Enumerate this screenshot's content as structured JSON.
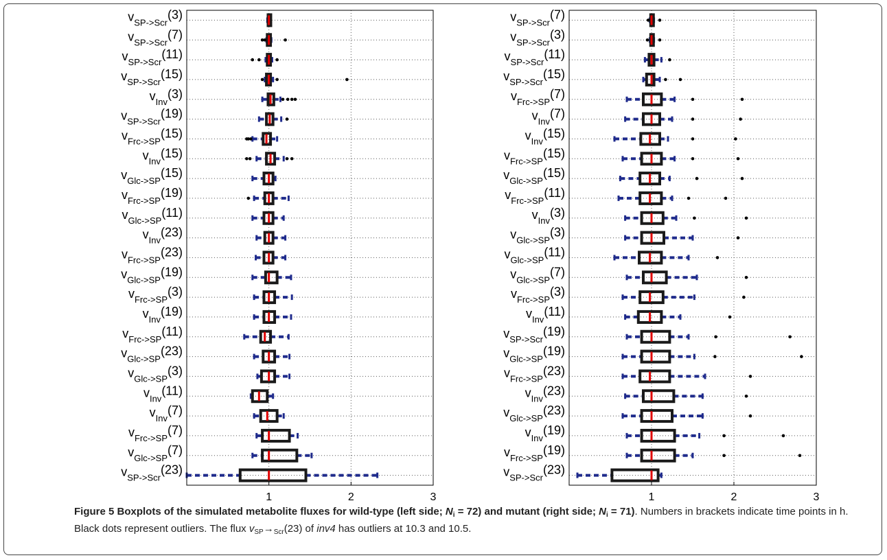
{
  "chart_data": [
    {
      "type": "box",
      "panel": "wild-type",
      "xlim": [
        0,
        3
      ],
      "xticks": [
        1,
        2,
        3
      ],
      "grid": true,
      "categories": [
        {
          "label": "SP->Scr",
          "t": "(3)",
          "q1": 0.99,
          "med": 1.0,
          "q3": 1.01,
          "wlo": 0.98,
          "whi": 1.02,
          "out": []
        },
        {
          "label": "SP->Scr",
          "t": "(7)",
          "q1": 0.98,
          "med": 1.0,
          "q3": 1.02,
          "wlo": 0.97,
          "whi": 1.03,
          "out": [
            0.92,
            0.95,
            1.2
          ]
        },
        {
          "label": "SP->Scr",
          "t": "(11)",
          "q1": 0.98,
          "med": 1.0,
          "q3": 1.02,
          "wlo": 0.96,
          "whi": 1.04,
          "out": [
            0.8,
            0.88,
            1.1
          ]
        },
        {
          "label": "SP->Scr",
          "t": "(15)",
          "q1": 0.97,
          "med": 1.0,
          "q3": 1.02,
          "wlo": 0.95,
          "whi": 1.05,
          "out": [
            0.92,
            1.1,
            1.95
          ]
        },
        {
          "label": "Inv",
          "t": "(3)",
          "q1": 0.99,
          "med": 1.02,
          "q3": 1.06,
          "wlo": 0.92,
          "whi": 1.14,
          "out": [
            1.17,
            1.23,
            1.28,
            1.32
          ]
        },
        {
          "label": "SP->Scr",
          "t": "(19)",
          "q1": 0.97,
          "med": 1.01,
          "q3": 1.05,
          "wlo": 0.88,
          "whi": 1.15,
          "out": [
            1.22
          ]
        },
        {
          "label": "Frc->SP",
          "t": "(15)",
          "q1": 0.93,
          "med": 0.97,
          "q3": 1.02,
          "wlo": 0.8,
          "whi": 1.1,
          "out": [
            0.73,
            0.75,
            0.78
          ]
        },
        {
          "label": "Inv",
          "t": "(15)",
          "q1": 0.97,
          "med": 1.02,
          "q3": 1.07,
          "wlo": 0.85,
          "whi": 1.18,
          "out": [
            0.73,
            0.77,
            1.22,
            1.28
          ]
        },
        {
          "label": "Glc->SP",
          "t": "(15)",
          "q1": 0.94,
          "med": 1.0,
          "q3": 1.05,
          "wlo": 0.8,
          "whi": 1.08,
          "out": []
        },
        {
          "label": "Frc->SP",
          "t": "(19)",
          "q1": 0.95,
          "med": 1.0,
          "q3": 1.05,
          "wlo": 0.82,
          "whi": 1.24,
          "out": [
            0.75
          ]
        },
        {
          "label": "Glc->SP",
          "t": "(11)",
          "q1": 0.94,
          "med": 1.0,
          "q3": 1.05,
          "wlo": 0.8,
          "whi": 1.18,
          "out": []
        },
        {
          "label": "Inv",
          "t": "(23)",
          "q1": 0.95,
          "med": 1.0,
          "q3": 1.05,
          "wlo": 0.85,
          "whi": 1.2,
          "out": []
        },
        {
          "label": "Frc->SP",
          "t": "(23)",
          "q1": 0.94,
          "med": 1.0,
          "q3": 1.05,
          "wlo": 0.84,
          "whi": 1.2,
          "out": []
        },
        {
          "label": "Glc->SP",
          "t": "(19)",
          "q1": 0.96,
          "med": 1.0,
          "q3": 1.1,
          "wlo": 0.8,
          "whi": 1.27,
          "out": []
        },
        {
          "label": "Frc->SP",
          "t": "(3)",
          "q1": 0.94,
          "med": 1.0,
          "q3": 1.07,
          "wlo": 0.82,
          "whi": 1.28,
          "out": []
        },
        {
          "label": "Inv",
          "t": "(19)",
          "q1": 0.94,
          "med": 1.0,
          "q3": 1.07,
          "wlo": 0.82,
          "whi": 1.27,
          "out": []
        },
        {
          "label": "Frc->SP",
          "t": "(11)",
          "q1": 0.9,
          "med": 0.95,
          "q3": 1.02,
          "wlo": 0.7,
          "whi": 1.24,
          "out": []
        },
        {
          "label": "Glc->SP",
          "t": "(23)",
          "q1": 0.93,
          "med": 1.0,
          "q3": 1.07,
          "wlo": 0.82,
          "whi": 1.25,
          "out": []
        },
        {
          "label": "Glc->SP",
          "t": "(3)",
          "q1": 0.91,
          "med": 1.0,
          "q3": 1.07,
          "wlo": 0.86,
          "whi": 1.25,
          "out": []
        },
        {
          "label": "Inv",
          "t": "(11)",
          "q1": 0.8,
          "med": 0.88,
          "q3": 0.98,
          "wlo": 0.78,
          "whi": 1.05,
          "out": []
        },
        {
          "label": "Inv",
          "t": "(7)",
          "q1": 0.9,
          "med": 0.98,
          "q3": 1.1,
          "wlo": 0.82,
          "whi": 1.18,
          "out": []
        },
        {
          "label": "Frc->SP",
          "t": "(7)",
          "q1": 0.92,
          "med": 1.0,
          "q3": 1.25,
          "wlo": 0.85,
          "whi": 1.35,
          "out": []
        },
        {
          "label": "Glc->SP",
          "t": "(7)",
          "q1": 0.92,
          "med": 1.0,
          "q3": 1.34,
          "wlo": 0.8,
          "whi": 1.52,
          "out": []
        },
        {
          "label": "SP->Scr",
          "t": "(23)",
          "q1": 0.65,
          "med": 1.0,
          "q3": 1.45,
          "wlo": 0.0,
          "whi": 2.32,
          "out": []
        }
      ]
    },
    {
      "type": "box",
      "panel": "mutant",
      "xlim": [
        0,
        3
      ],
      "xticks": [
        1,
        2,
        3
      ],
      "grid": true,
      "categories": [
        {
          "label": "SP->Scr",
          "t": "(7)",
          "q1": 0.99,
          "med": 1.0,
          "q3": 1.02,
          "wlo": 0.98,
          "whi": 1.03,
          "out": [
            0.96,
            1.1
          ]
        },
        {
          "label": "SP->Scr",
          "t": "(3)",
          "q1": 0.99,
          "med": 1.0,
          "q3": 1.02,
          "wlo": 0.98,
          "whi": 1.03,
          "out": [
            0.95,
            1.1
          ]
        },
        {
          "label": "SP->Scr",
          "t": "(11)",
          "q1": 0.97,
          "med": 1.0,
          "q3": 1.03,
          "wlo": 0.92,
          "whi": 1.12,
          "out": [
            1.22
          ]
        },
        {
          "label": "SP->Scr",
          "t": "(15)",
          "q1": 0.94,
          "med": 1.0,
          "q3": 1.03,
          "wlo": 0.9,
          "whi": 1.1,
          "out": [
            1.17,
            1.35
          ]
        },
        {
          "label": "Frc->SP",
          "t": "(7)",
          "q1": 0.9,
          "med": 1.0,
          "q3": 1.12,
          "wlo": 0.7,
          "whi": 1.28,
          "out": [
            1.5,
            2.1
          ]
        },
        {
          "label": "Inv",
          "t": "(7)",
          "q1": 0.9,
          "med": 1.0,
          "q3": 1.1,
          "wlo": 0.68,
          "whi": 1.25,
          "out": [
            1.5,
            2.08
          ]
        },
        {
          "label": "Inv",
          "t": "(15)",
          "q1": 0.87,
          "med": 0.98,
          "q3": 1.1,
          "wlo": 0.55,
          "whi": 1.2,
          "out": [
            1.5,
            2.02
          ]
        },
        {
          "label": "Frc->SP",
          "t": "(15)",
          "q1": 0.88,
          "med": 1.0,
          "q3": 1.12,
          "wlo": 0.65,
          "whi": 1.28,
          "out": [
            1.5,
            2.05
          ]
        },
        {
          "label": "Glc->SP",
          "t": "(15)",
          "q1": 0.86,
          "med": 0.98,
          "q3": 1.1,
          "wlo": 0.62,
          "whi": 1.22,
          "out": [
            1.55,
            2.1
          ]
        },
        {
          "label": "Frc->SP",
          "t": "(11)",
          "q1": 0.86,
          "med": 0.98,
          "q3": 1.12,
          "wlo": 0.6,
          "whi": 1.25,
          "out": [
            1.45,
            1.9
          ]
        },
        {
          "label": "Inv",
          "t": "(3)",
          "q1": 0.88,
          "med": 1.0,
          "q3": 1.14,
          "wlo": 0.68,
          "whi": 1.3,
          "out": [
            1.52,
            2.15
          ]
        },
        {
          "label": "Glc->SP",
          "t": "(3)",
          "q1": 0.88,
          "med": 1.0,
          "q3": 1.15,
          "wlo": 0.68,
          "whi": 1.5,
          "out": [
            2.05
          ]
        },
        {
          "label": "Glc->SP",
          "t": "(11)",
          "q1": 0.85,
          "med": 0.98,
          "q3": 1.12,
          "wlo": 0.55,
          "whi": 1.45,
          "out": [
            1.8
          ]
        },
        {
          "label": "Glc->SP",
          "t": "(7)",
          "q1": 0.9,
          "med": 1.0,
          "q3": 1.18,
          "wlo": 0.7,
          "whi": 1.55,
          "out": [
            2.15
          ]
        },
        {
          "label": "Frc->SP",
          "t": "(3)",
          "q1": 0.86,
          "med": 0.98,
          "q3": 1.14,
          "wlo": 0.65,
          "whi": 1.52,
          "out": [
            2.12
          ]
        },
        {
          "label": "Inv",
          "t": "(11)",
          "q1": 0.84,
          "med": 0.98,
          "q3": 1.12,
          "wlo": 0.68,
          "whi": 1.35,
          "out": [
            1.95
          ]
        },
        {
          "label": "SP->Scr",
          "t": "(19)",
          "q1": 0.88,
          "med": 1.0,
          "q3": 1.22,
          "wlo": 0.7,
          "whi": 1.45,
          "out": [
            1.78,
            2.68
          ]
        },
        {
          "label": "Glc->SP",
          "t": "(19)",
          "q1": 0.88,
          "med": 1.0,
          "q3": 1.22,
          "wlo": 0.65,
          "whi": 1.52,
          "out": [
            1.77,
            2.82
          ]
        },
        {
          "label": "Frc->SP",
          "t": "(23)",
          "q1": 0.86,
          "med": 0.98,
          "q3": 1.22,
          "wlo": 0.65,
          "whi": 1.65,
          "out": [
            2.2
          ]
        },
        {
          "label": "Inv",
          "t": "(23)",
          "q1": 0.9,
          "med": 1.0,
          "q3": 1.27,
          "wlo": 0.68,
          "whi": 1.62,
          "out": [
            2.15
          ]
        },
        {
          "label": "Glc->SP",
          "t": "(23)",
          "q1": 0.88,
          "med": 1.0,
          "q3": 1.25,
          "wlo": 0.65,
          "whi": 1.62,
          "out": [
            2.2
          ]
        },
        {
          "label": "Inv",
          "t": "(19)",
          "q1": 0.88,
          "med": 1.0,
          "q3": 1.28,
          "wlo": 0.7,
          "whi": 1.58,
          "out": [
            1.88,
            2.6
          ]
        },
        {
          "label": "Frc->SP",
          "t": "(19)",
          "q1": 0.88,
          "med": 1.0,
          "q3": 1.28,
          "wlo": 0.7,
          "whi": 1.5,
          "out": [
            1.88,
            2.8
          ]
        },
        {
          "label": "SP->Scr",
          "t": "(23)",
          "q1": 0.52,
          "med": 1.0,
          "q3": 1.08,
          "wlo": 0.1,
          "whi": 1.12,
          "out": []
        }
      ]
    }
  ],
  "label_prefix": "v",
  "colors": {
    "box": "#1a1a1a",
    "median": "#e00000",
    "whisker": "#1f2b8c",
    "outlier": "#000000",
    "grid": "#555555"
  },
  "caption": {
    "bold": "Figure 5 Boxplots of the simulated metabolite fluxes for wild-type (left side; ",
    "n_sym": "N",
    "n_sub": "i",
    "bold_mid": " = 72) and mutant (right side; ",
    "bold_end": " = 71)",
    "text1": ". Numbers in brackets indicate time points in h. Black dots represent outliers. The flux ",
    "flux_v": "v",
    "flux_sub1": "SP",
    "flux_arrow": "→",
    "flux_sub2": "Scr",
    "text2": "(23) of ",
    "gene": "inv4",
    "text3": " has outliers at 10.3 and 10.5."
  }
}
